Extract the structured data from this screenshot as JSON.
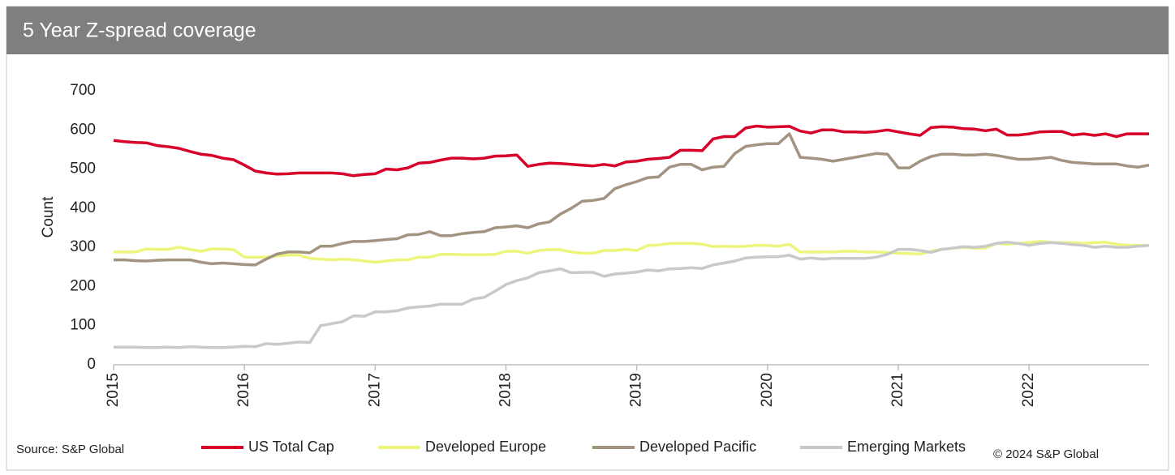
{
  "chart_data": {
    "type": "line",
    "title": "5 Year Z-spread coverage",
    "ylabel": "Count",
    "source": "Source: S&P Global",
    "copyright": "© 2024 S&P Global",
    "x": [
      2015,
      2015.083,
      2015.167,
      2015.25,
      2015.333,
      2015.417,
      2015.5,
      2015.583,
      2015.667,
      2015.75,
      2015.833,
      2015.917,
      2016,
      2016.083,
      2016.167,
      2016.25,
      2016.333,
      2016.417,
      2016.5,
      2016.583,
      2016.667,
      2016.75,
      2016.833,
      2016.917,
      2017,
      2017.083,
      2017.167,
      2017.25,
      2017.333,
      2017.417,
      2017.5,
      2017.583,
      2017.667,
      2017.75,
      2017.833,
      2017.917,
      2018,
      2018.083,
      2018.167,
      2018.25,
      2018.333,
      2018.417,
      2018.5,
      2018.583,
      2018.667,
      2018.75,
      2018.833,
      2018.917,
      2019,
      2019.083,
      2019.167,
      2019.25,
      2019.333,
      2019.417,
      2019.5,
      2019.583,
      2019.667,
      2019.75,
      2019.833,
      2019.917,
      2020,
      2020.083,
      2020.167,
      2020.25,
      2020.333,
      2020.417,
      2020.5,
      2020.583,
      2020.667,
      2020.75,
      2020.833,
      2020.917,
      2021,
      2021.083,
      2021.167,
      2021.25,
      2021.333,
      2021.417,
      2021.5,
      2021.583,
      2021.667,
      2021.75,
      2021.833,
      2021.917,
      2022,
      2022.083,
      2022.167,
      2022.25,
      2022.333,
      2022.417,
      2022.5,
      2022.583,
      2022.667,
      2022.75,
      2022.833,
      2022.917
    ],
    "xlim": [
      2015,
      2022.917
    ],
    "xticks": [
      2015,
      2016,
      2017,
      2018,
      2019,
      2020,
      2021,
      2022
    ],
    "ylim": [
      0,
      700
    ],
    "yticks": [
      0,
      100,
      200,
      300,
      400,
      500,
      600,
      700
    ],
    "grid": false,
    "series": [
      {
        "name": "US Total Cap",
        "color": "#d6002a",
        "values": [
          573,
          570,
          568,
          567,
          560,
          557,
          553,
          545,
          538,
          535,
          528,
          524,
          510,
          495,
          490,
          487,
          488,
          490,
          490,
          490,
          490,
          488,
          483,
          486,
          488,
          500,
          498,
          503,
          515,
          517,
          523,
          528,
          528,
          526,
          528,
          533,
          534,
          536,
          507,
          512,
          515,
          514,
          512,
          510,
          508,
          512,
          508,
          518,
          520,
          525,
          527,
          530,
          548,
          548,
          547,
          577,
          583,
          583,
          605,
          610,
          607,
          608,
          609,
          597,
          592,
          600,
          600,
          595,
          595,
          594,
          596,
          600,
          595,
          590,
          586,
          606,
          608,
          607,
          603,
          602,
          598,
          602,
          587,
          587,
          590,
          595,
          596,
          596,
          587,
          590,
          586,
          590,
          583,
          590,
          590,
          590
        ]
      },
      {
        "name": "Developed Europe",
        "color": "#ecf57c",
        "values": [
          288,
          288,
          288,
          296,
          295,
          295,
          300,
          295,
          290,
          296,
          296,
          294,
          275,
          275,
          275,
          278,
          280,
          280,
          272,
          270,
          268,
          270,
          268,
          265,
          262,
          265,
          268,
          268,
          275,
          275,
          282,
          282,
          281,
          281,
          281,
          282,
          290,
          290,
          285,
          292,
          294,
          294,
          288,
          285,
          285,
          292,
          292,
          295,
          292,
          305,
          306,
          310,
          310,
          310,
          308,
          302,
          303,
          302,
          303,
          305,
          305,
          303,
          308,
          288,
          288,
          288,
          288,
          290,
          290,
          288,
          288,
          287,
          285,
          284,
          283,
          290,
          295,
          298,
          300,
          298,
          298,
          310,
          308,
          310,
          312,
          315,
          313,
          312,
          312,
          310,
          312,
          313,
          308,
          305,
          305,
          305
        ]
      },
      {
        "name": "Developed Pacific",
        "color": "#a39481",
        "values": [
          268,
          268,
          266,
          265,
          267,
          268,
          268,
          268,
          262,
          258,
          260,
          258,
          256,
          255,
          270,
          283,
          288,
          288,
          286,
          303,
          303,
          310,
          315,
          315,
          317,
          320,
          322,
          332,
          333,
          340,
          330,
          330,
          335,
          338,
          340,
          350,
          352,
          355,
          350,
          360,
          365,
          385,
          400,
          418,
          420,
          425,
          450,
          460,
          468,
          478,
          480,
          505,
          512,
          512,
          498,
          505,
          507,
          540,
          558,
          562,
          565,
          565,
          590,
          530,
          528,
          525,
          520,
          525,
          530,
          535,
          540,
          538,
          503,
          503,
          520,
          532,
          538,
          538,
          536,
          536,
          538,
          535,
          530,
          525,
          525,
          527,
          530,
          522,
          517,
          515,
          513,
          513,
          513,
          508,
          505,
          510
        ]
      },
      {
        "name": "Emerging Markets",
        "color": "#c9c9c9",
        "values": [
          45,
          45,
          45,
          44,
          44,
          45,
          44,
          46,
          45,
          44,
          44,
          45,
          47,
          46,
          54,
          52,
          55,
          58,
          57,
          100,
          105,
          110,
          125,
          124,
          135,
          135,
          138,
          145,
          148,
          150,
          155,
          155,
          155,
          168,
          172,
          188,
          205,
          215,
          222,
          235,
          240,
          245,
          235,
          236,
          236,
          226,
          232,
          234,
          237,
          242,
          240,
          245,
          246,
          248,
          246,
          255,
          260,
          265,
          273,
          275,
          276,
          276,
          280,
          270,
          273,
          270,
          272,
          272,
          272,
          272,
          275,
          282,
          295,
          295,
          292,
          287,
          295,
          298,
          302,
          300,
          303,
          310,
          313,
          310,
          305,
          310,
          312,
          310,
          307,
          305,
          300,
          303,
          300,
          300,
          303,
          305
        ]
      }
    ]
  }
}
